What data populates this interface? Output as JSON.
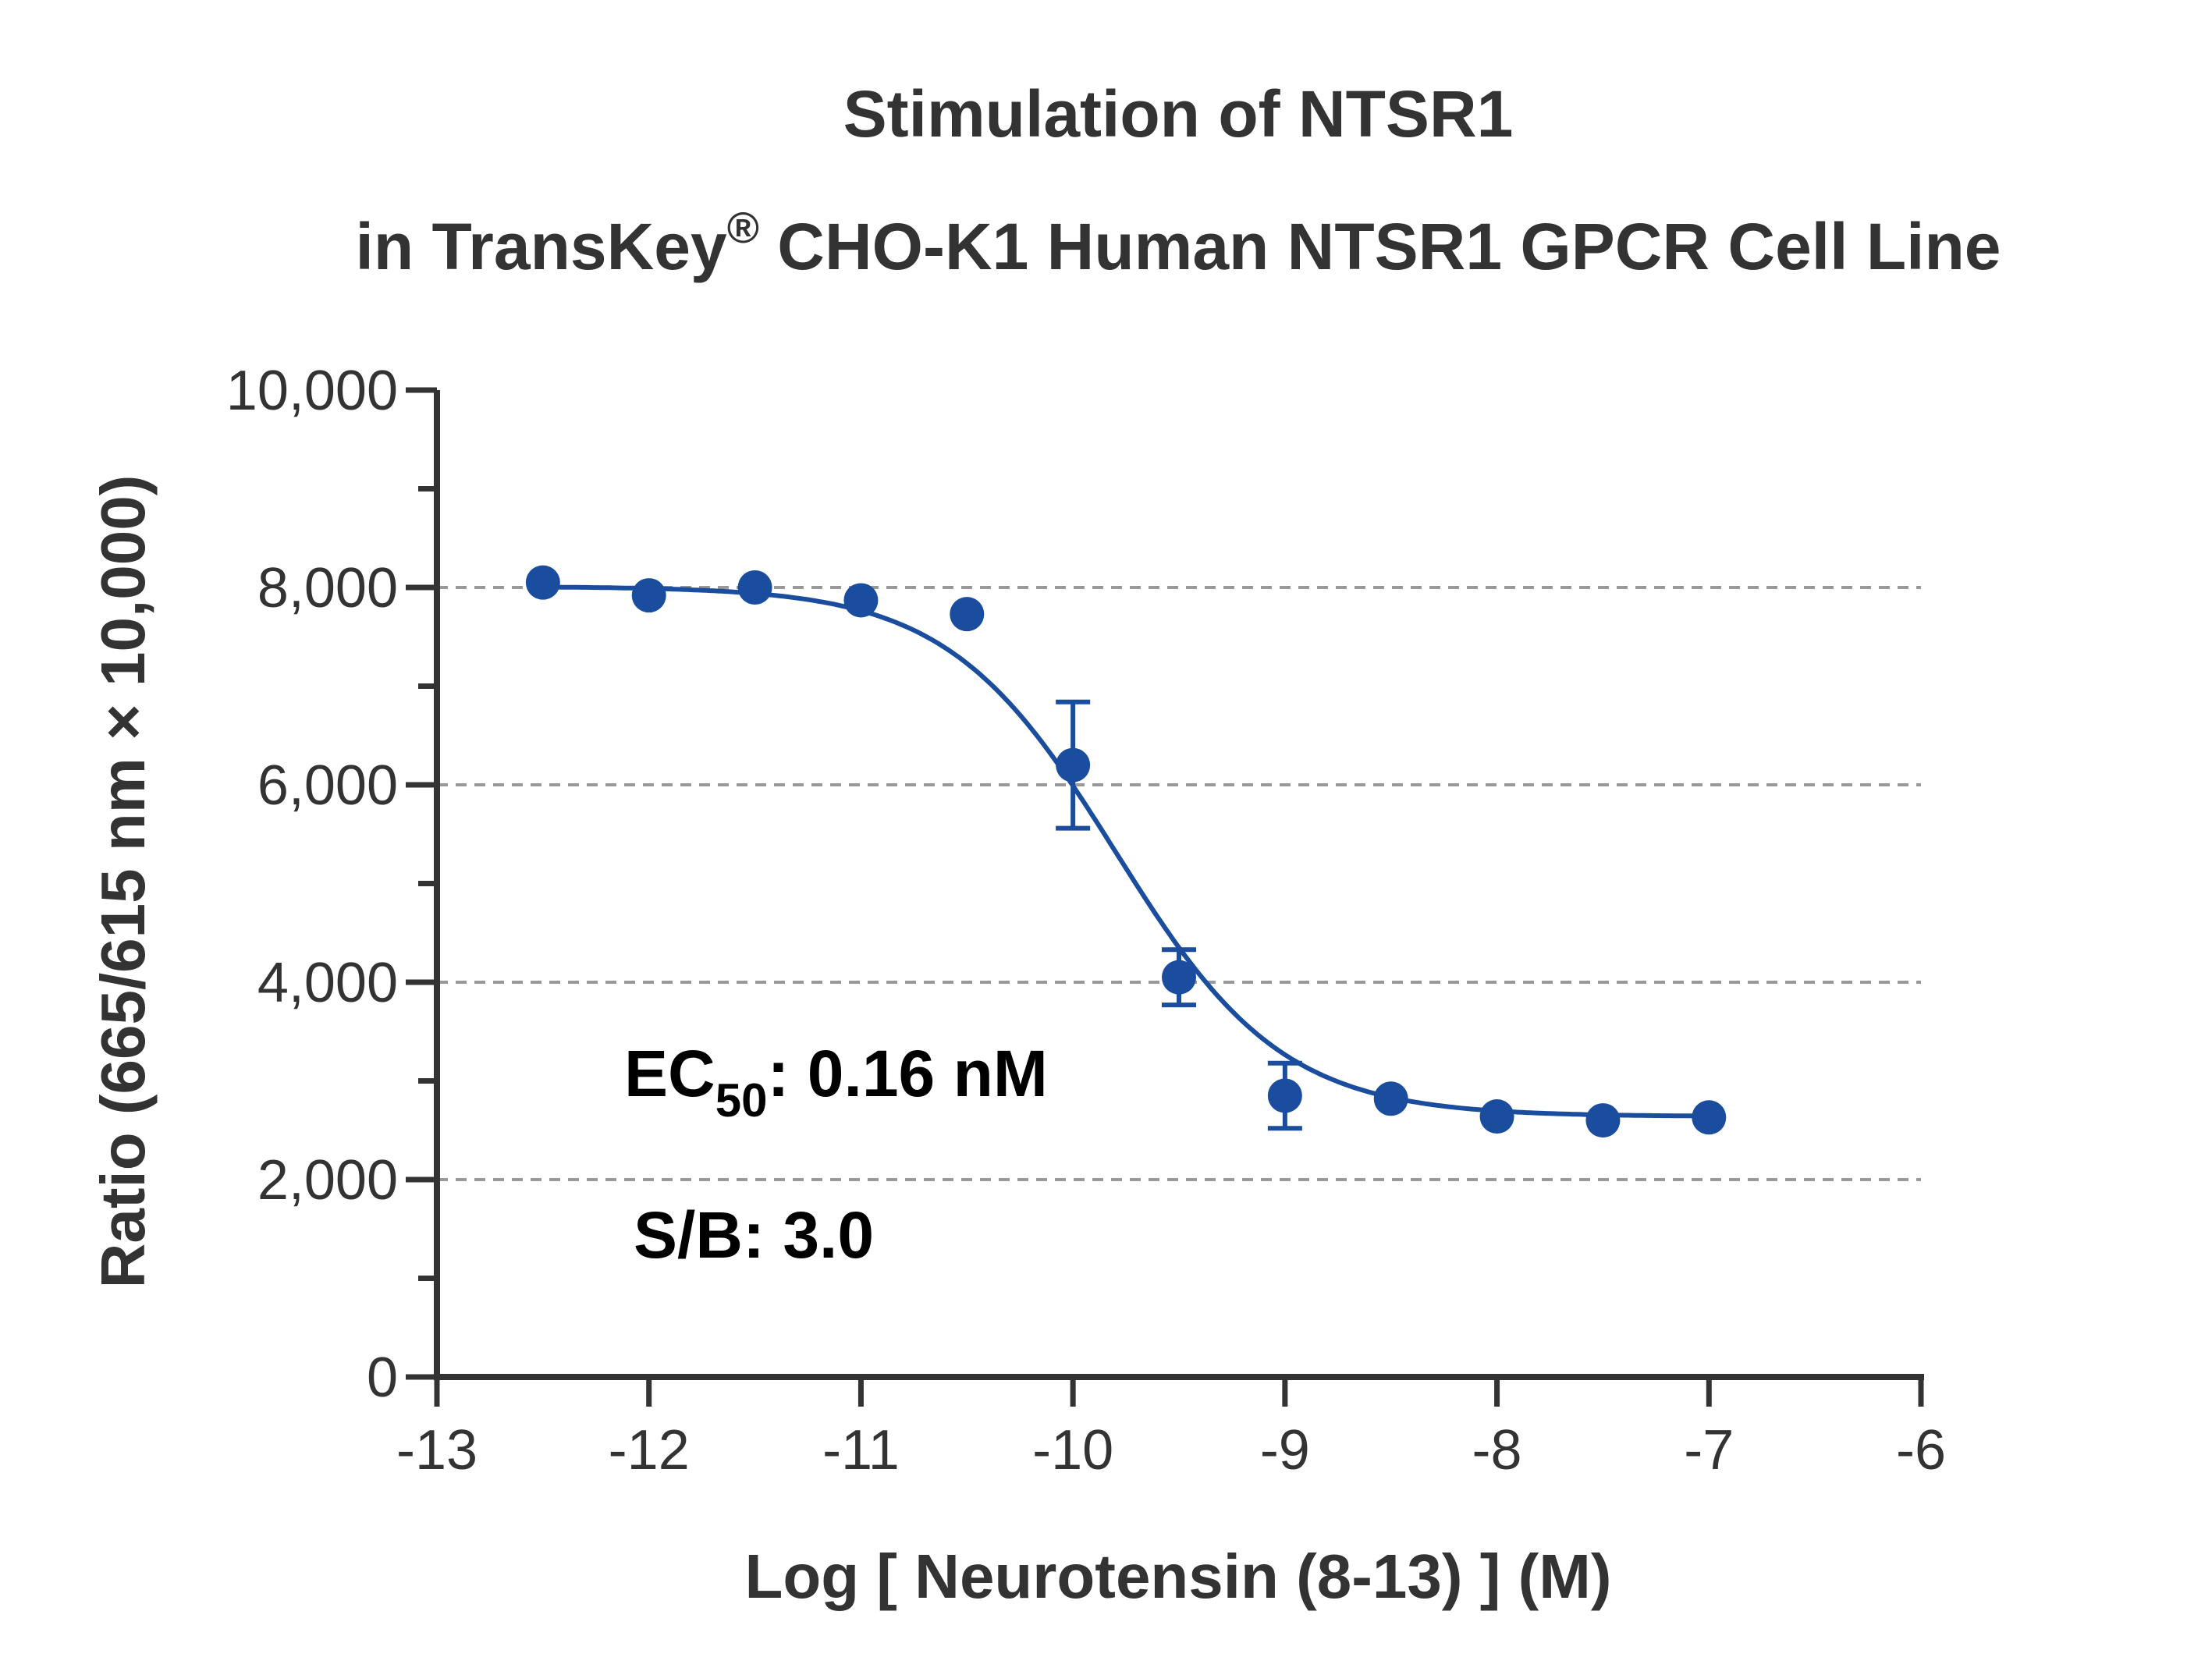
{
  "chart_data": {
    "type": "scatter",
    "title_line1": "Stimulation of  NTSR1",
    "title_line2_prefix": "in TransKey",
    "title_line2_reg": "®",
    "title_line2_suffix": " CHO-K1 Human NTSR1 GPCR Cell Line",
    "xlabel": "Log [ Neurotensin (8-13) ]  (M)",
    "ylabel": "Ratio (665/615 nm × 10,000)",
    "xlim": [
      -13,
      -6
    ],
    "ylim": [
      0,
      10000
    ],
    "x_ticks": [
      -13,
      -12,
      -11,
      -10,
      -9,
      -8,
      -7,
      -6
    ],
    "x_tick_labels": [
      "-13",
      "-12",
      "-11",
      "-10",
      "-9",
      "-8",
      "-7",
      "-6"
    ],
    "y_ticks": [
      0,
      2000,
      4000,
      6000,
      8000,
      10000
    ],
    "y_tick_labels": [
      "0",
      "2,000",
      "4,000",
      "6,000",
      "8,000",
      "10,000"
    ],
    "y_minor_step": 1000,
    "grid_y": [
      2000,
      4000,
      6000,
      8000
    ],
    "grid": "horizontal dashed at major y ticks",
    "series": [
      {
        "color": "#1a4d9e",
        "points": [
          {
            "x": -12.5,
            "y": 8050,
            "err": 0
          },
          {
            "x": -12.0,
            "y": 7920,
            "err": 0
          },
          {
            "x": -11.5,
            "y": 8000,
            "err": 0
          },
          {
            "x": -11.0,
            "y": 7870,
            "err": 0
          },
          {
            "x": -10.5,
            "y": 7730,
            "err": 0
          },
          {
            "x": -10.0,
            "y": 6200,
            "err": 640
          },
          {
            "x": -9.5,
            "y": 4050,
            "err": 280
          },
          {
            "x": -9.0,
            "y": 2850,
            "err": 330
          },
          {
            "x": -8.5,
            "y": 2820,
            "err": 0
          },
          {
            "x": -8.0,
            "y": 2640,
            "err": 0
          },
          {
            "x": -7.5,
            "y": 2600,
            "err": 0
          },
          {
            "x": -7.0,
            "y": 2630,
            "err": 0
          }
        ],
        "fit": {
          "type": "4PL",
          "top": 8010,
          "bottom": 2640,
          "logEC50": -9.8,
          "hill": -1.1
        }
      }
    ],
    "annotations": {
      "ec50_prefix": "EC",
      "ec50_sub": "50",
      "ec50_value": ": 0.16 nM",
      "sb": "S/B: 3.0"
    }
  }
}
